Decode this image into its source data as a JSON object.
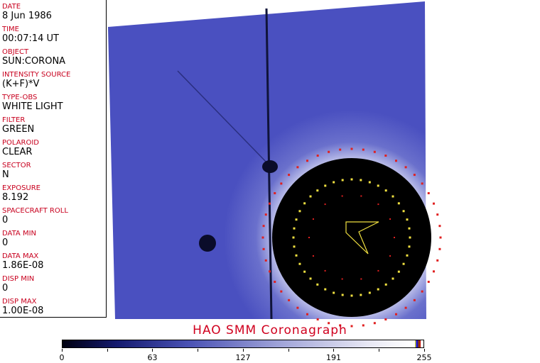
{
  "fields": [
    {
      "label": "DATE",
      "value": "8 Jun 1986"
    },
    {
      "label": "TIME",
      "value": "00:07:14 UT"
    },
    {
      "label": "OBJECT",
      "value": "SUN:CORONA"
    },
    {
      "label": "INTENSITY SOURCE",
      "value": "(K+F)*V"
    },
    {
      "label": "TYPE-OBS",
      "value": "WHITE LIGHT"
    },
    {
      "label": "FILTER",
      "value": "GREEN"
    },
    {
      "label": "POLAROID",
      "value": "CLEAR"
    },
    {
      "label": "SECTOR",
      "value": "N"
    },
    {
      "label": "EXPOSURE",
      "value": "8.192"
    },
    {
      "label": "SPACECRAFT ROLL",
      "value": "0"
    },
    {
      "label": "DATA MIN",
      "value": "0"
    },
    {
      "label": "DATA MAX",
      "value": "1.86E-08"
    },
    {
      "label": "DISP MIN",
      "value": "0"
    },
    {
      "label": "DISP MAX",
      "value": "1.00E-08"
    }
  ],
  "title": "HAO   SMM  Coronagraph",
  "colorbar": {
    "ticks": [
      "0",
      "63",
      "127",
      "191",
      "255"
    ],
    "min": 0,
    "max": 255
  },
  "colors": {
    "label": "#c8001e",
    "image_bg": "#4a50c0",
    "occulter": "#000000"
  }
}
